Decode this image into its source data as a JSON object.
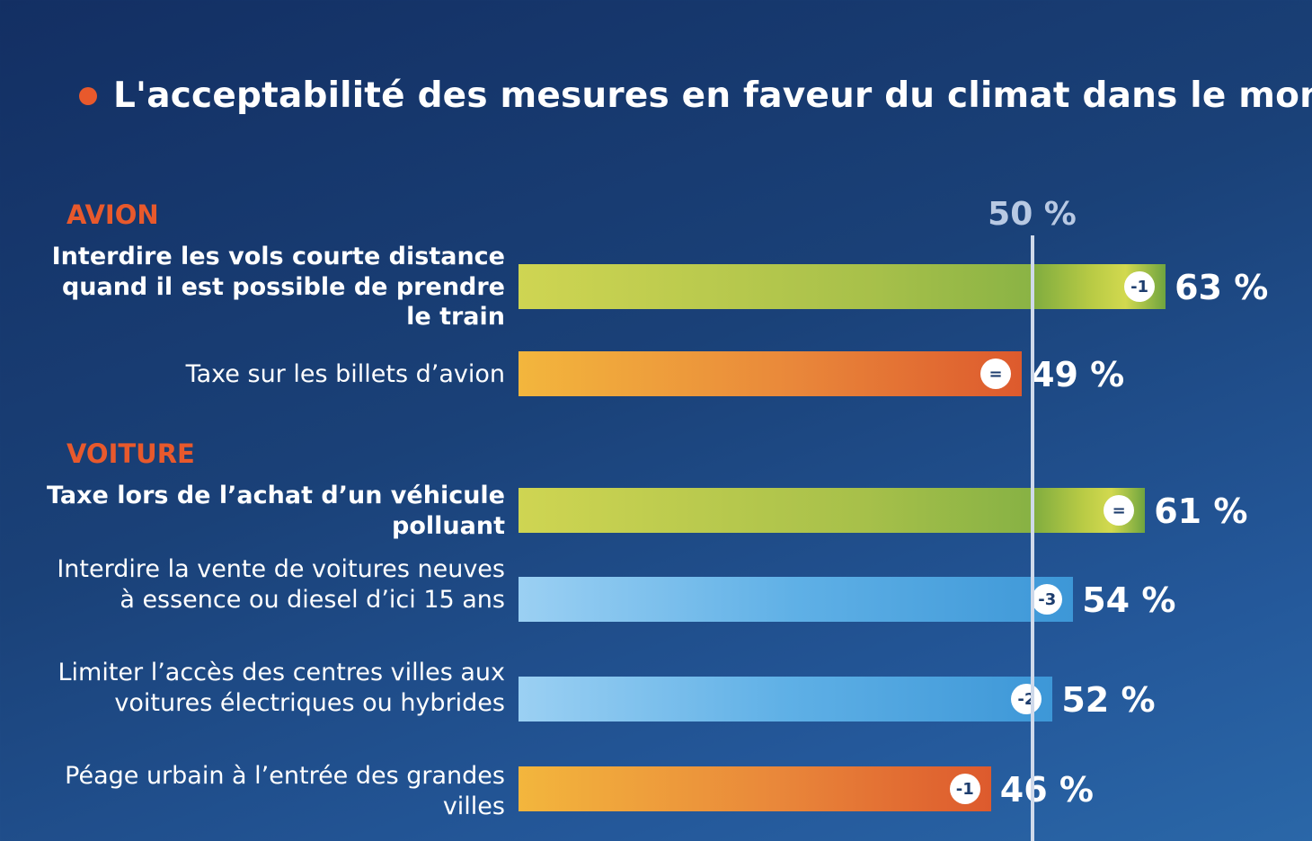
{
  "colors": {
    "accent": "#e8592c",
    "background": "#1a4178",
    "green": "#a7c04a",
    "orange": "#e9873a",
    "blue": "#5fb0e6",
    "reference_line": "#cfd9ea"
  },
  "chart_data": {
    "type": "bar",
    "orientation": "horizontal",
    "title": "L'acceptabilité des mesures en faveur du climat dans le monde",
    "unit": "%",
    "reference": {
      "value": 50,
      "label": "50 %"
    },
    "xlim": [
      0,
      100
    ],
    "groups": [
      {
        "name": "AVION",
        "items": [
          {
            "label": "Interdire les vols courte distance quand il est possible de prendre le train",
            "value": 63,
            "value_label": "63 %",
            "change": "-1",
            "color": "green",
            "bold": true
          },
          {
            "label": "Taxe sur les billets d’avion",
            "value": 49,
            "value_label": "49 %",
            "change": "=",
            "color": "orange",
            "bold": false
          }
        ]
      },
      {
        "name": "VOITURE",
        "items": [
          {
            "label": "Taxe lors de l’achat d’un véhicule polluant",
            "value": 61,
            "value_label": "61 %",
            "change": "=",
            "color": "green",
            "bold": true
          },
          {
            "label": "Interdire la vente de voitures neuves à essence ou diesel d’ici 15 ans",
            "value": 54,
            "value_label": "54 %",
            "change": "-3",
            "color": "blue",
            "bold": false
          },
          {
            "label": "Limiter l’accès des centres villes aux voitures électriques ou hybrides",
            "value": 52,
            "value_label": "52 %",
            "change": "-2",
            "color": "blue",
            "bold": false
          },
          {
            "label": "Péage urbain à l’entrée des grandes villes",
            "value": 46,
            "value_label": "46 %",
            "change": "-1",
            "color": "orange",
            "bold": false
          }
        ]
      }
    ]
  }
}
